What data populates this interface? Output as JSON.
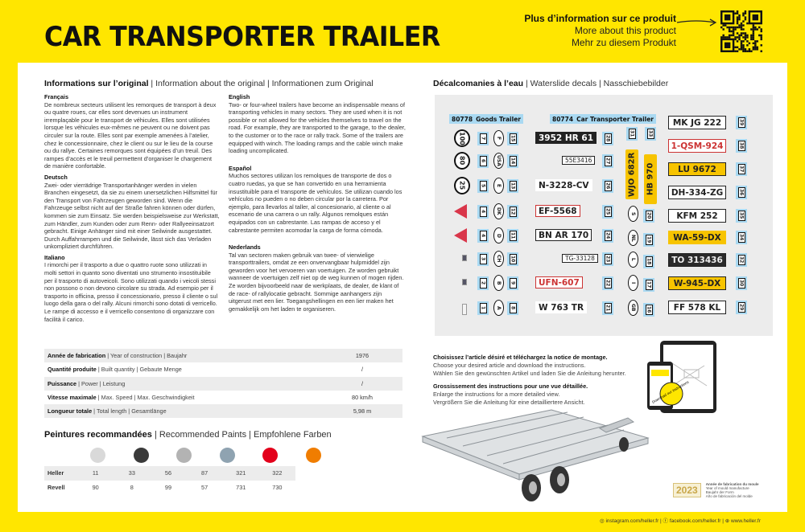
{
  "title": "CAR TRANSPORTER TRAILER",
  "more_info": {
    "fr": "Plus d’information sur ce produit",
    "en": "More about this product",
    "de": "Mehr zu diesem Produkt",
    "qr_icon": "qr-code-icon"
  },
  "info": {
    "heading_fr": "Informations sur l’original",
    "heading_en": " | Information about the original | Informationen zum Original",
    "sections": [
      {
        "lang": "Français",
        "text": "De nombreux secteurs utilisent les remorques de transport à deux ou quatre roues, car elles sont devenues un instrument irremplaçable pour le transport de véhicules. Elles sont utilisées lorsque les véhicules eux-mêmes ne peuvent ou ne doivent pas circuler sur la route. Elles sont par exemple amenées à l’atelier, chez le concessionnaire, chez le client ou sur le lieu de la course ou du rallye. Certaines remorques sont équipées d’un treuil. Des rampes d’accès et le treuil permettent d’organiser le chargement de manière confortable."
      },
      {
        "lang": "Deutsch",
        "text": "Zwei- oder vierrädrige Transportanhänger werden in vielen Branchen eingesetzt, da sie zu einem unersetzlichen Hilfsmittel für den Transport von Fahrzeugen geworden sind. Wenn die Fahrzeuge selbst nicht auf der Straße fahren können oder dürfen, kommen sie zum Einsatz. Sie werden beispielsweise zur Werkstatt, zum Händler, zum Kunden oder zum Renn- oder Rallyeeinsatzort gebracht. Einige Anhänger sind mit einer Seilwinde ausgestattet. Durch Auffahrrampen und die Seilwinde, lässt sich das Verladen unkompliziert durchführen."
      },
      {
        "lang": "Italiano",
        "text": "I rimorchi per il trasporto a due o quattro ruote sono utilizzati in molti settori in quanto sono diventati uno strumento insostituibile per il trasporto di autoveicoli. Sono utilizzati quando i veicoli stessi non possono o non devono circolare su strada. Ad esempio per il trasporto in officina, presso il concessionario, presso il cliente o sul luogo della gara o del rally. Alcuni rimorchi sono dotati di verricello. Le rampe di accesso e il verricello consentono di organizzare con facilità il carico."
      },
      {
        "lang": "English",
        "text": "Two- or four-wheel trailers have become an indispensable means of transporting vehicles in many sectors. They are used when it is not possible or not allowed for the vehicles themselves to travel on the road. For example, they are transported to the garage, to the dealer, to the customer or to the race or rally track. Some of the trailers are equipped with winch. The loading ramps and the cable winch make loading uncomplicated."
      },
      {
        "lang": "Español",
        "text": "Muchos sectores utilizan los remolques de transporte de dos o cuatro ruedas, ya que se han convertido en una herramienta insustituible para el transporte de vehículos. Se utilizan cuando los vehículos no pueden o no deben circular por la carretera. Por ejemplo, para llevarlos al taller, al concesionario, al cliente o al escenario de una carrera o un rally. Algunos remolques están equipados con un cabrestante. Las rampas de acceso y el cabrestante permiten acomodar la carga de forma cómoda."
      },
      {
        "lang": "Nederlands",
        "text": "Tal van sectoren maken gebruik van twee- of vierwielige transporttrailers, omdat ze een onvervangbaar hulpmiddel zijn geworden voor het vervoeren van voertuigen. Ze worden gebruikt wanneer de voertuigen zelf niet op de weg kunnen of mogen rijden. Ze worden bijvoorbeeld naar de werkplaats, de dealer, de klant of de race- of rallylocatie gebracht. Sommige aanhangers zijn uitgerust met een lier. Toegangshellingen en een lier maken het gemakkelijk om het laden te organiseren."
      }
    ]
  },
  "specs": [
    {
      "fr": "Année de fabrication",
      "rest": " | Year of construction | Baujahr",
      "value": "1976"
    },
    {
      "fr": "Quantité produite",
      "rest": " | Built quantity | Gebaute Menge",
      "value": "/"
    },
    {
      "fr": "Puissance",
      "rest": " | Power | Leistung",
      "value": "/"
    },
    {
      "fr": "Vitesse maximale",
      "rest": " | Max. Speed | Max. Geschwindigkeit",
      "value": "80 km/h"
    },
    {
      "fr": "Longueur totale",
      "rest": " | Total length | Gesamtlänge",
      "value": "5,98 m"
    }
  ],
  "paints": {
    "heading_fr": "Peintures recommandées",
    "heading_rest": " | Recommended Paints | Empfohlene Farben",
    "colors": [
      "#d9d9d9",
      "#3a3a3a",
      "#b3b3b3",
      "#8fa3b1",
      "#e3001b",
      "#f07d00"
    ],
    "rows": [
      {
        "brand": "Heller",
        "codes": [
          "11",
          "33",
          "56",
          "87",
          "321",
          "322"
        ]
      },
      {
        "brand": "Revell",
        "codes": [
          "90",
          "8",
          "99",
          "57",
          "731",
          "730"
        ]
      }
    ]
  },
  "decals": {
    "heading_fr": "Décalcomanies à l’eau",
    "heading_rest": " | Waterslide decals | Nasschiebebilder",
    "labels": [
      {
        "code": "80778",
        "name": "Goods Trailer"
      },
      {
        "code": "80774",
        "name": "Car Transporter Trailer"
      }
    ],
    "speed_signs": [
      "100",
      "80",
      "25"
    ],
    "countries_a": [
      "F",
      "USA",
      "E",
      "DK",
      "D",
      "CH",
      "B",
      "A"
    ],
    "countries_b": [
      "S",
      "NL",
      "L",
      "I",
      "GB"
    ],
    "tags_a": [
      "7",
      "6",
      "5",
      "4",
      "4",
      "3",
      "2",
      "1"
    ],
    "tags_b": [
      "15",
      "14",
      "13",
      "12",
      "11",
      "10",
      "9",
      "8"
    ],
    "tags_c": [
      "28",
      "27",
      "26",
      "25",
      "24",
      "23",
      "22",
      "21"
    ],
    "tags_d": [
      "20",
      "19",
      "18",
      "17",
      "16"
    ],
    "tags_top": [
      "31",
      "33"
    ],
    "tags_e": [
      "39",
      "38",
      "37",
      "36",
      "35",
      "34",
      "32",
      "30",
      "29"
    ],
    "plates_mid": [
      "3952 HR 61",
      "55E3416",
      "N-3228-CV",
      "EF-5568",
      "BN AR 170",
      "TG-33128",
      "UFN-607",
      "W 763 TR"
    ],
    "plates_vertical": [
      "WJO 682R",
      "HB 970"
    ],
    "plates_right": [
      "MK JG 222",
      "1-QSM-924",
      "LU 9672",
      "DH-334-ZG",
      "KFM 252",
      "WA-59-DX",
      "TO 313436",
      "W-945-DX",
      "FF 578 KL"
    ]
  },
  "instructions": {
    "p1": [
      "Choisissez l’article désiré et téléchargez la notice de montage.",
      "Choose your desired article and download the instructions.",
      "Wählen Sie den gewünschten Artikel und laden Sie die Anleitung herunter."
    ],
    "p2": [
      "Grossissement des instructions pour une vue détaillée.",
      "Enlarge the instructions for a more detailed view.",
      "Vergrößern Sie die Anleitung für eine detailliertere Ansicht."
    ],
    "badge": "Download our instructions"
  },
  "mould": {
    "year": "2023",
    "lines": [
      "Année de fabrication du moule",
      "Year of mould manufacture",
      "Baujahr der Form",
      "Año de fabricación del molde"
    ]
  },
  "footer": {
    "instagram": "instagram.com/heller.fr",
    "facebook": "facebook.com/heller.fr",
    "web": "www.heller.fr"
  }
}
